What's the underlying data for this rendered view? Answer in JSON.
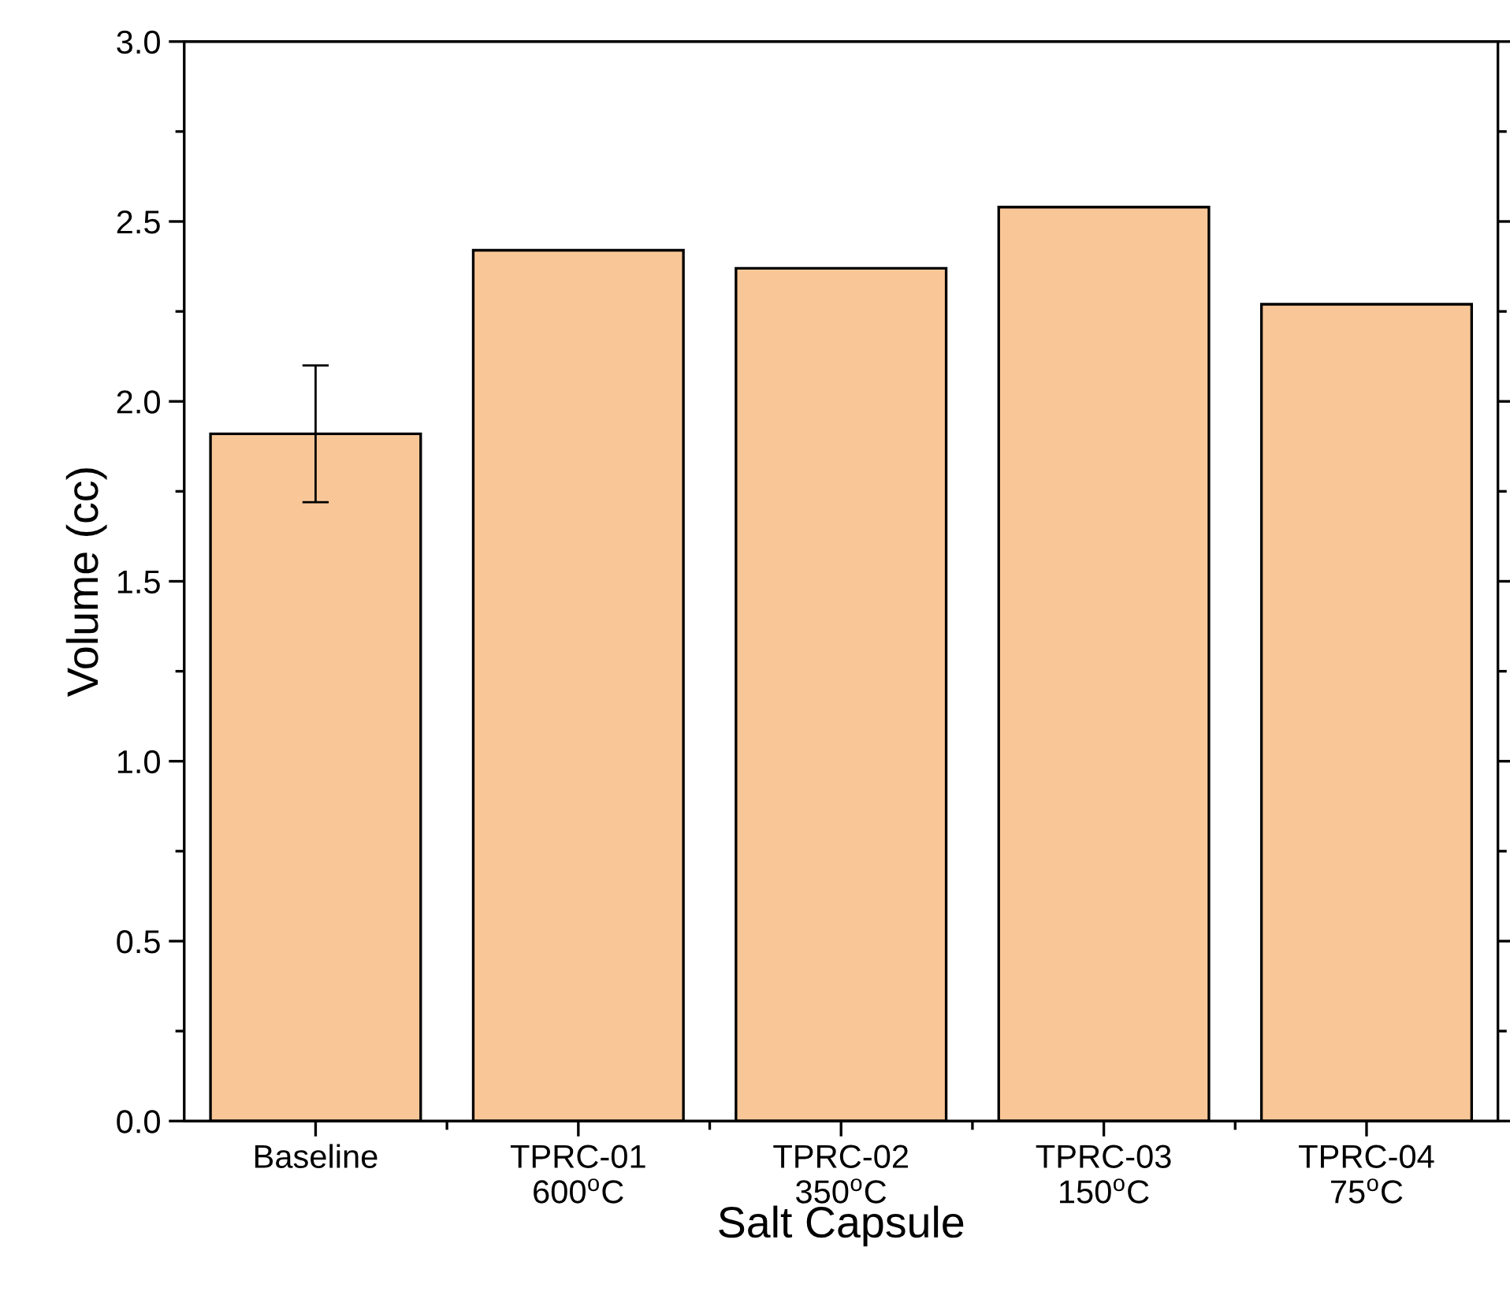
{
  "chart_data": {
    "type": "bar",
    "xlabel": "Salt Capsule",
    "ylabel": "Volume (cc)",
    "categories": [
      "Baseline",
      "TPRC-01\n600$^{o}$C",
      "TPRC-02\n350$^{o}$C",
      "TPRC-03\n150$^{o}$C",
      "TPRC-04\n75$^{o}$C"
    ],
    "values": [
      1.91,
      2.42,
      2.37,
      2.54,
      2.27
    ],
    "errors": [
      0.19,
      null,
      null,
      null,
      null
    ],
    "color": "#f9c797",
    "ylim": [
      0,
      3
    ],
    "yticks": [
      {
        "value": 0,
        "label": "0.0"
      },
      {
        "value": 0.5,
        "label": "0.5"
      },
      {
        "value": 1,
        "label": "1.0"
      },
      {
        "value": 1.5,
        "label": "1.5"
      },
      {
        "value": 2,
        "label": "2.0"
      },
      {
        "value": 2.5,
        "label": "2.5"
      },
      {
        "value": 3,
        "label": "3.0"
      }
    ],
    "grid": false
  }
}
